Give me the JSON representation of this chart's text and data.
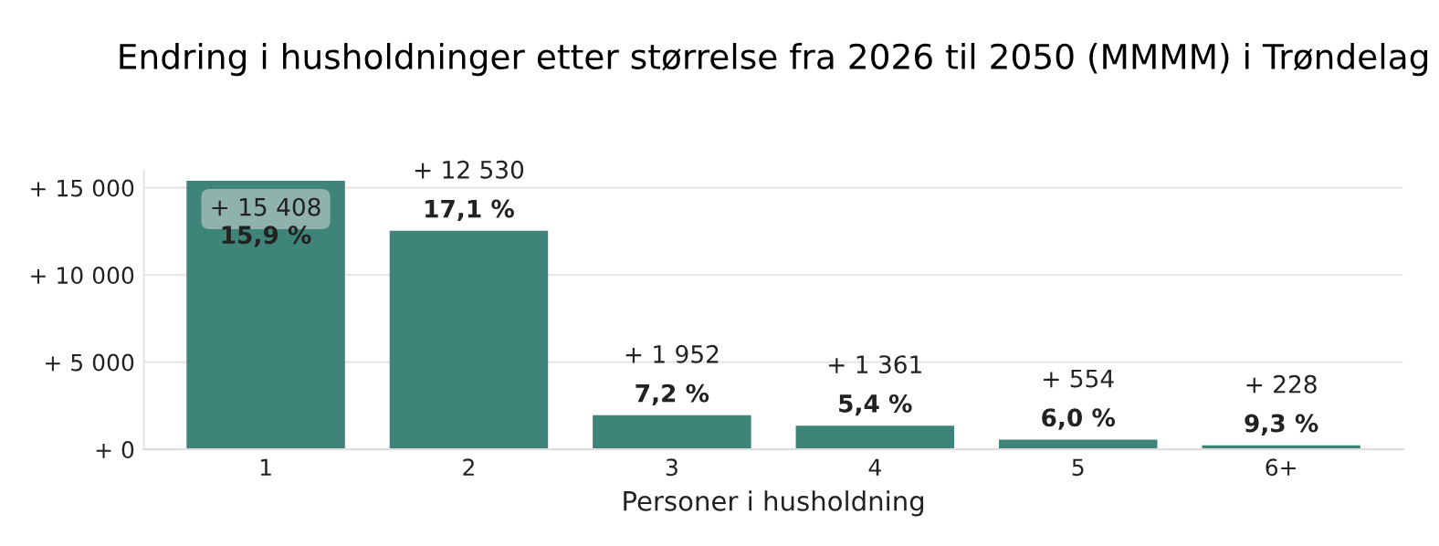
{
  "chart_data": {
    "type": "bar",
    "title": "Endring i husholdninger etter størrelse fra 2026 til 2050 (MMMM) i Trøndelag",
    "xlabel": "Personer i husholdning",
    "categories": [
      "1",
      "2",
      "3",
      "4",
      "5",
      "6+"
    ],
    "values": [
      15408,
      12530,
      1952,
      1361,
      554,
      228
    ],
    "value_labels": [
      "+ 15 408\n15,9 %",
      "+ 12 530\n17,1 %",
      "+ 1 952\n7,2 %",
      "+ 1 361\n5,4 %",
      "+ 554\n6,0 %",
      "+ 228\n9,3 %"
    ],
    "color": "#3f8478",
    "ylim": [
      0,
      16000
    ],
    "yticks": [
      {
        "value": 0,
        "label": "+ 0"
      },
      {
        "value": 5000,
        "label": "+ 5 000"
      },
      {
        "value": 10000,
        "label": "+ 10 000"
      },
      {
        "value": 15000,
        "label": "+ 15 000"
      }
    ],
    "grid": "y"
  }
}
